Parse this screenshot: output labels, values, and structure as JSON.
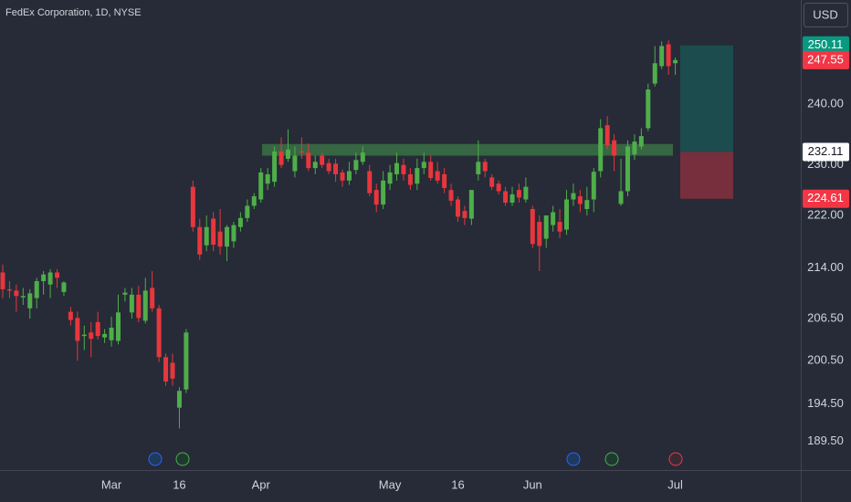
{
  "header": {
    "title": "FedEx Corporation, 1D, NYSE",
    "currency": "USD"
  },
  "chart_data": {
    "type": "candlestick",
    "log_scale": true,
    "up_color": "#4fae4a",
    "down_color": "#e8363d",
    "ylim": [
      185.7,
      258.2
    ],
    "yticks": [
      {
        "value": 189.5,
        "label": "189.50"
      },
      {
        "value": 194.5,
        "label": "194.50"
      },
      {
        "value": 200.5,
        "label": "200.50"
      },
      {
        "value": 206.5,
        "label": "206.50"
      },
      {
        "value": 214,
        "label": "214.00"
      },
      {
        "value": 222,
        "label": "222.00"
      },
      {
        "value": 230,
        "label": "230.00"
      },
      {
        "value": 240,
        "label": "240.00"
      }
    ],
    "categories": [
      null,
      null,
      null,
      null,
      null,
      null,
      null,
      null,
      null,
      null,
      null,
      null,
      null,
      null,
      null,
      null,
      "Mar",
      null,
      null,
      null,
      null,
      null,
      null,
      null,
      null,
      null,
      "16",
      null,
      null,
      null,
      null,
      null,
      null,
      null,
      null,
      null,
      null,
      null,
      "Apr",
      null,
      null,
      null,
      null,
      null,
      null,
      null,
      null,
      null,
      null,
      null,
      null,
      null,
      null,
      null,
      null,
      null,
      null,
      "May",
      null,
      null,
      null,
      null,
      null,
      null,
      null,
      null,
      null,
      "16",
      null,
      null,
      null,
      null,
      null,
      null,
      null,
      null,
      null,
      null,
      "Jun",
      null,
      null,
      null,
      null,
      null,
      null,
      null,
      null,
      null,
      null,
      null,
      null,
      null,
      null,
      null,
      null,
      null,
      null,
      null,
      null,
      "Jul"
    ],
    "ohlc": [
      [
        213.3,
        214.5,
        209.5,
        210.8
      ],
      [
        210.8,
        212.0,
        209.5,
        210.6
      ],
      [
        210.6,
        211.5,
        207.5,
        209.8
      ],
      [
        209.6,
        211.0,
        208.5,
        209.8
      ],
      [
        208.0,
        210.8,
        206.5,
        210.2
      ],
      [
        209.5,
        212.5,
        208.0,
        212.0
      ],
      [
        212.0,
        213.5,
        210.0,
        213.0
      ],
      [
        211.5,
        213.8,
        209.5,
        213.3
      ],
      [
        213.3,
        213.8,
        211.0,
        212.5
      ],
      [
        210.4,
        212.0,
        209.8,
        211.8
      ],
      [
        207.5,
        208.2,
        205.5,
        206.3
      ],
      [
        206.6,
        207.5,
        200.5,
        203.3
      ],
      [
        204.0,
        205.5,
        202.0,
        204.2
      ],
      [
        204.5,
        206.0,
        201.0,
        203.6
      ],
      [
        206.0,
        207.5,
        203.5,
        204.0
      ],
      [
        203.8,
        205.0,
        203.0,
        204.3
      ],
      [
        203.4,
        206.8,
        202.5,
        205.2
      ],
      [
        203.3,
        210.0,
        202.8,
        207.4
      ],
      [
        210.0,
        211.0,
        209.0,
        210.3
      ],
      [
        207.4,
        211.0,
        206.5,
        210.0
      ],
      [
        210.0,
        211.3,
        206.0,
        206.6
      ],
      [
        206.2,
        212.5,
        205.8,
        210.6
      ],
      [
        211.0,
        213.5,
        207.5,
        208.0
      ],
      [
        208.0,
        208.5,
        200.3,
        201.0
      ],
      [
        201.0,
        201.5,
        197.0,
        197.6
      ],
      [
        200.2,
        201.5,
        197.0,
        198.0
      ],
      [
        194.0,
        196.8,
        191.2,
        196.3
      ],
      [
        196.5,
        205.0,
        196.0,
        204.5
      ],
      [
        226.5,
        227.5,
        219.5,
        220.2
      ],
      [
        220.2,
        221.5,
        215.2,
        216.0
      ],
      [
        217.4,
        222.0,
        216.5,
        220.2
      ],
      [
        221.5,
        222.5,
        216.5,
        217.5
      ],
      [
        219.5,
        223.0,
        216.0,
        217.2
      ],
      [
        217.2,
        220.5,
        215.0,
        220.2
      ],
      [
        218.0,
        221.0,
        217.0,
        220.5
      ],
      [
        220.2,
        222.5,
        219.5,
        221.6
      ],
      [
        221.6,
        224.5,
        221.0,
        223.5
      ],
      [
        223.5,
        225.5,
        223.0,
        225.0
      ],
      [
        224.5,
        229.5,
        224.0,
        228.8
      ],
      [
        227.0,
        229.5,
        226.0,
        228.5
      ],
      [
        227.3,
        233.0,
        226.5,
        232.2
      ],
      [
        232.2,
        234.5,
        229.5,
        230.0
      ],
      [
        231.0,
        235.8,
        230.5,
        232.5
      ],
      [
        229.0,
        233.0,
        228.0,
        231.5
      ],
      [
        232.2,
        234.5,
        231.0,
        232.0
      ],
      [
        232.0,
        233.5,
        229.0,
        229.5
      ],
      [
        229.5,
        231.5,
        228.5,
        230.5
      ],
      [
        231.5,
        232.0,
        229.5,
        230.0
      ],
      [
        230.3,
        231.0,
        228.5,
        229.0
      ],
      [
        230.2,
        231.0,
        227.3,
        228.5
      ],
      [
        228.8,
        229.3,
        226.5,
        227.5
      ],
      [
        227.5,
        230.5,
        226.8,
        229.0
      ],
      [
        229.2,
        232.0,
        228.5,
        230.8
      ],
      [
        230.5,
        233.0,
        230.0,
        232.0
      ],
      [
        229.0,
        230.0,
        225.0,
        225.5
      ],
      [
        226.0,
        227.0,
        222.5,
        223.7
      ],
      [
        223.7,
        229.0,
        223.0,
        227.5
      ],
      [
        227.0,
        230.0,
        226.0,
        228.8
      ],
      [
        228.5,
        232.0,
        227.5,
        230.3
      ],
      [
        230.0,
        231.0,
        227.5,
        228.5
      ],
      [
        228.5,
        229.5,
        226.0,
        226.8
      ],
      [
        227.0,
        231.0,
        226.0,
        229.5
      ],
      [
        229.5,
        232.0,
        228.5,
        230.5
      ],
      [
        230.5,
        231.5,
        227.5,
        227.9
      ],
      [
        229.0,
        230.5,
        227.0,
        227.5
      ],
      [
        228.5,
        229.5,
        225.5,
        226.3
      ],
      [
        226.0,
        227.0,
        223.5,
        224.3
      ],
      [
        224.5,
        225.0,
        221.0,
        221.8
      ],
      [
        222.7,
        223.5,
        220.5,
        221.6
      ],
      [
        221.5,
        226.0,
        220.5,
        226.0
      ],
      [
        228.5,
        234.0,
        227.5,
        230.5
      ],
      [
        230.5,
        231.0,
        228.0,
        229.0
      ],
      [
        228.0,
        228.5,
        226.0,
        226.5
      ],
      [
        227.0,
        227.5,
        225.3,
        225.8
      ],
      [
        225.8,
        226.5,
        223.5,
        224.0
      ],
      [
        224.0,
        226.5,
        223.5,
        225.3
      ],
      [
        226.0,
        227.0,
        224.0,
        224.8
      ],
      [
        224.5,
        228.0,
        224.0,
        226.5
      ],
      [
        223.0,
        223.5,
        217.0,
        217.6
      ],
      [
        221.0,
        222.0,
        213.5,
        217.3
      ],
      [
        218.4,
        222.0,
        217.0,
        222.0
      ],
      [
        220.5,
        223.5,
        219.5,
        222.5
      ],
      [
        221.0,
        223.0,
        218.5,
        219.5
      ],
      [
        219.8,
        226.0,
        219.0,
        224.5
      ],
      [
        224.5,
        227.0,
        223.5,
        225.5
      ],
      [
        225.0,
        226.0,
        222.5,
        223.8
      ],
      [
        223.0,
        226.5,
        222.0,
        224.4
      ],
      [
        224.5,
        229.5,
        222.5,
        228.9
      ],
      [
        229.0,
        237.5,
        228.0,
        236.0
      ],
      [
        236.5,
        238.0,
        232.5,
        233.2
      ],
      [
        234.0,
        235.0,
        229.0,
        231.5
      ],
      [
        223.8,
        231.0,
        223.5,
        225.8
      ],
      [
        225.8,
        234.0,
        225.0,
        233.0
      ],
      [
        231.7,
        235.0,
        230.8,
        233.8
      ],
      [
        233.0,
        236.0,
        232.5,
        234.7
      ],
      [
        236.0,
        243.5,
        235.5,
        242.5
      ],
      [
        243.5,
        250.0,
        243.0,
        247.0
      ],
      [
        246.5,
        250.8,
        246.0,
        250.0
      ],
      [
        250.3,
        251.0,
        245.0,
        246.5
      ],
      [
        247.0,
        248.0,
        245.0,
        247.55
      ]
    ],
    "zone": {
      "low": 231.5,
      "high": 233.4
    },
    "position": {
      "target": 250.11,
      "entry": 232.11,
      "stop": 224.61
    },
    "last_price": 247.55
  }
}
